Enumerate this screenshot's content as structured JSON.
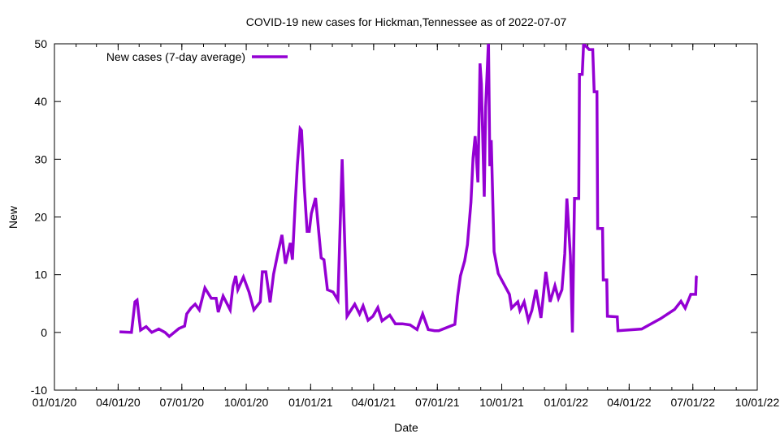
{
  "chart_data": {
    "type": "line",
    "title": "COVID-19 new cases for Hickman,Tennessee as of 2022-07-07",
    "xlabel": "Date",
    "ylabel": "New",
    "xlim": [
      "2020-01-01",
      "2022-10-01"
    ],
    "ylim": [
      -10,
      50
    ],
    "yticks": [
      -10,
      0,
      10,
      20,
      30,
      40,
      50
    ],
    "xticks": [
      {
        "date": "2020-01-01",
        "label": "01/01/20"
      },
      {
        "date": "2020-04-01",
        "label": "04/01/20"
      },
      {
        "date": "2020-07-01",
        "label": "07/01/20"
      },
      {
        "date": "2020-10-01",
        "label": "10/01/20"
      },
      {
        "date": "2021-01-01",
        "label": "01/01/21"
      },
      {
        "date": "2021-04-01",
        "label": "04/01/21"
      },
      {
        "date": "2021-07-01",
        "label": "07/01/21"
      },
      {
        "date": "2021-10-01",
        "label": "10/01/21"
      },
      {
        "date": "2022-01-01",
        "label": "01/01/22"
      },
      {
        "date": "2022-04-01",
        "label": "04/01/22"
      },
      {
        "date": "2022-07-01",
        "label": "07/01/22"
      },
      {
        "date": "2022-10-01",
        "label": "10/01/22"
      }
    ],
    "grid": false,
    "legend_position": "top-left",
    "series": [
      {
        "name": "New cases (7-day average)",
        "color": "#9400D3",
        "points": [
          [
            "2020-04-03",
            0.1
          ],
          [
            "2020-04-20",
            0
          ],
          [
            "2020-04-25",
            5.3
          ],
          [
            "2020-04-28",
            5.6
          ],
          [
            "2020-05-03",
            0.4
          ],
          [
            "2020-05-11",
            1
          ],
          [
            "2020-05-19",
            0
          ],
          [
            "2020-05-29",
            0.6
          ],
          [
            "2020-06-07",
            0
          ],
          [
            "2020-06-13",
            -0.7
          ],
          [
            "2020-06-27",
            0.7
          ],
          [
            "2020-07-05",
            1.1
          ],
          [
            "2020-07-08",
            3.2
          ],
          [
            "2020-07-14",
            4.2
          ],
          [
            "2020-07-20",
            4.9
          ],
          [
            "2020-07-26",
            3.9
          ],
          [
            "2020-08-03",
            7.7
          ],
          [
            "2020-08-12",
            5.9
          ],
          [
            "2020-08-19",
            5.9
          ],
          [
            "2020-08-22",
            3.5
          ],
          [
            "2020-08-29",
            6.3
          ],
          [
            "2020-09-08",
            3.9
          ],
          [
            "2020-09-12",
            8
          ],
          [
            "2020-09-16",
            9.8
          ],
          [
            "2020-09-19",
            7.4
          ],
          [
            "2020-09-27",
            9.6
          ],
          [
            "2020-10-05",
            7
          ],
          [
            "2020-10-12",
            3.9
          ],
          [
            "2020-10-21",
            5.3
          ],
          [
            "2020-10-24",
            10.5
          ],
          [
            "2020-10-29",
            10.5
          ],
          [
            "2020-11-04",
            5.2
          ],
          [
            "2020-11-09",
            10.1
          ],
          [
            "2020-11-15",
            13.6
          ],
          [
            "2020-11-21",
            16.9
          ],
          [
            "2020-11-26",
            11.9
          ],
          [
            "2020-12-03",
            15.5
          ],
          [
            "2020-12-06",
            12.6
          ],
          [
            "2020-12-10",
            22.5
          ],
          [
            "2020-12-13",
            29
          ],
          [
            "2020-12-17",
            35.3
          ],
          [
            "2020-12-19",
            35
          ],
          [
            "2020-12-23",
            25
          ],
          [
            "2020-12-27",
            17.5
          ],
          [
            "2020-12-30",
            17.5
          ],
          [
            "2021-01-02",
            20.6
          ],
          [
            "2021-01-08",
            23.3
          ],
          [
            "2021-01-16",
            12.9
          ],
          [
            "2021-01-20",
            12.6
          ],
          [
            "2021-01-25",
            7.4
          ],
          [
            "2021-02-02",
            7
          ],
          [
            "2021-02-09",
            5.6
          ],
          [
            "2021-02-15",
            30
          ],
          [
            "2021-02-22",
            2.8
          ],
          [
            "2021-03-05",
            4.9
          ],
          [
            "2021-03-12",
            3.2
          ],
          [
            "2021-03-17",
            4.6
          ],
          [
            "2021-03-24",
            2.1
          ],
          [
            "2021-03-31",
            2.8
          ],
          [
            "2021-04-07",
            4.3
          ],
          [
            "2021-04-13",
            2
          ],
          [
            "2021-04-24",
            3
          ],
          [
            "2021-05-02",
            1.5
          ],
          [
            "2021-05-12",
            1.5
          ],
          [
            "2021-05-23",
            1.3
          ],
          [
            "2021-06-02",
            0.5
          ],
          [
            "2021-06-10",
            3.2
          ],
          [
            "2021-06-18",
            0.5
          ],
          [
            "2021-06-27",
            0.3
          ],
          [
            "2021-07-03",
            0.3
          ],
          [
            "2021-07-26",
            1.4
          ],
          [
            "2021-07-30",
            6.3
          ],
          [
            "2021-08-03",
            9.8
          ],
          [
            "2021-08-09",
            12.4
          ],
          [
            "2021-08-13",
            15.2
          ],
          [
            "2021-08-18",
            22.5
          ],
          [
            "2021-08-21",
            30.2
          ],
          [
            "2021-08-24",
            34
          ],
          [
            "2021-08-28",
            26
          ],
          [
            "2021-08-31",
            46.6
          ],
          [
            "2021-09-02",
            43
          ],
          [
            "2021-09-06",
            23.5
          ],
          [
            "2021-09-08",
            39
          ],
          [
            "2021-09-12",
            50.5
          ],
          [
            "2021-09-14",
            28.8
          ],
          [
            "2021-09-16",
            33.3
          ],
          [
            "2021-09-20",
            14
          ],
          [
            "2021-09-26",
            10.2
          ],
          [
            "2021-10-04",
            8.4
          ],
          [
            "2021-10-12",
            6.6
          ],
          [
            "2021-10-15",
            4.2
          ],
          [
            "2021-10-24",
            5.3
          ],
          [
            "2021-10-27",
            3.8
          ],
          [
            "2021-11-02",
            5.3
          ],
          [
            "2021-11-08",
            2.1
          ],
          [
            "2021-11-13",
            3.8
          ],
          [
            "2021-11-19",
            7.4
          ],
          [
            "2021-11-26",
            2.5
          ],
          [
            "2021-12-03",
            10.5
          ],
          [
            "2021-12-09",
            5.3
          ],
          [
            "2021-12-16",
            8.1
          ],
          [
            "2021-12-21",
            5.9
          ],
          [
            "2021-12-26",
            7.4
          ],
          [
            "2021-12-30",
            13.6
          ],
          [
            "2022-01-02",
            23.2
          ],
          [
            "2022-01-07",
            13.3
          ],
          [
            "2022-01-10",
            0
          ],
          [
            "2022-01-13",
            23.2
          ],
          [
            "2022-01-19",
            23.2
          ],
          [
            "2022-01-20",
            44.7
          ],
          [
            "2022-01-24",
            44.7
          ],
          [
            "2022-01-26",
            50
          ],
          [
            "2022-02-03",
            49
          ],
          [
            "2022-02-08",
            49
          ],
          [
            "2022-02-10",
            41.7
          ],
          [
            "2022-02-14",
            41.7
          ],
          [
            "2022-02-15",
            18
          ],
          [
            "2022-02-22",
            18
          ],
          [
            "2022-02-23",
            9.1
          ],
          [
            "2022-02-28",
            9.1
          ],
          [
            "2022-03-01",
            2.8
          ],
          [
            "2022-03-15",
            2.7
          ],
          [
            "2022-03-16",
            0.3
          ],
          [
            "2022-04-19",
            0.6
          ],
          [
            "2022-05-01",
            1.4
          ],
          [
            "2022-05-16",
            2.4
          ],
          [
            "2022-06-05",
            4
          ],
          [
            "2022-06-14",
            5.4
          ],
          [
            "2022-06-20",
            4.2
          ],
          [
            "2022-06-28",
            6.6
          ],
          [
            "2022-07-05",
            6.6
          ],
          [
            "2022-07-06",
            9.6
          ],
          [
            "2022-07-07",
            9.8
          ]
        ]
      }
    ]
  }
}
